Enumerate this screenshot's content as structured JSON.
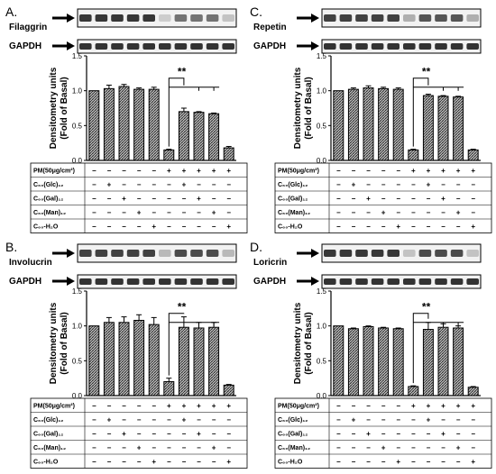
{
  "chart_data": [
    {
      "type": "bar",
      "panel_label": "A.",
      "protein": "Filaggrin",
      "loading_control": "GAPDH",
      "ylabel": "Densitometry units\n(Fold of Basal)",
      "ylim": [
        0,
        1.5
      ],
      "yticks": [
        "0.0",
        "0.5",
        "1.0",
        "1.5"
      ],
      "values": [
        1.0,
        1.03,
        1.06,
        1.02,
        1.02,
        0.15,
        0.7,
        0.69,
        0.67,
        0.18
      ],
      "errors": [
        0.0,
        0.05,
        0.03,
        0.02,
        0.03,
        0.01,
        0.05,
        0.01,
        0.01,
        0.02
      ],
      "significance": "**",
      "band_intensities": [
        0.9,
        0.9,
        0.9,
        0.9,
        0.9,
        0.15,
        0.6,
        0.6,
        0.6,
        0.2
      ],
      "table_rows": [
        {
          "label": "PM(50μg/cm²)",
          "cells": [
            "−",
            "−",
            "−",
            "−",
            "−",
            "+",
            "+",
            "+",
            "+",
            "+"
          ]
        },
        {
          "label": "C₆₀(Glc)₁₂",
          "cells": [
            "−",
            "+",
            "−",
            "−",
            "−",
            "−",
            "+",
            "−",
            "−",
            "−"
          ]
        },
        {
          "label": "C₆₀(Gal)₁₂",
          "cells": [
            "−",
            "−",
            "+",
            "−",
            "−",
            "−",
            "−",
            "+",
            "−",
            "−"
          ]
        },
        {
          "label": "C₆₀(Man)₁₂",
          "cells": [
            "−",
            "−",
            "−",
            "+",
            "−",
            "−",
            "−",
            "−",
            "+",
            "−"
          ]
        },
        {
          "label": "C₆₀-H₂O",
          "cells": [
            "−",
            "−",
            "−",
            "−",
            "+",
            "−",
            "−",
            "−",
            "−",
            "+"
          ]
        }
      ]
    },
    {
      "type": "bar",
      "panel_label": "C.",
      "protein": "Repetin",
      "loading_control": "GAPDH",
      "ylabel": "Densitometry units\n(Fold of Basal)",
      "ylim": [
        0,
        1.5
      ],
      "yticks": [
        "0.0",
        "0.5",
        "1.0",
        "1.5"
      ],
      "values": [
        1.0,
        1.02,
        1.04,
        1.03,
        1.02,
        0.15,
        0.93,
        0.92,
        0.91,
        0.15
      ],
      "errors": [
        0.0,
        0.02,
        0.03,
        0.02,
        0.02,
        0.01,
        0.02,
        0.01,
        0.01,
        0.01
      ],
      "significance": "**",
      "band_intensities": [
        0.85,
        0.85,
        0.85,
        0.85,
        0.85,
        0.3,
        0.75,
        0.75,
        0.75,
        0.3
      ],
      "table_rows": [
        {
          "label": "PM(50μg/cm²)",
          "cells": [
            "−",
            "−",
            "−",
            "−",
            "−",
            "+",
            "+",
            "+",
            "+",
            "+"
          ]
        },
        {
          "label": "C₆₀(Glc)₁₂",
          "cells": [
            "−",
            "+",
            "−",
            "−",
            "−",
            "−",
            "+",
            "−",
            "−",
            "−"
          ]
        },
        {
          "label": "C₆₀(Gal)₁₂",
          "cells": [
            "−",
            "−",
            "+",
            "−",
            "−",
            "−",
            "−",
            "+",
            "−",
            "−"
          ]
        },
        {
          "label": "C₆₀(Man)₁₂",
          "cells": [
            "−",
            "−",
            "−",
            "+",
            "−",
            "−",
            "−",
            "−",
            "+",
            "−"
          ]
        },
        {
          "label": "C₆₀-H₂O",
          "cells": [
            "−",
            "−",
            "−",
            "−",
            "+",
            "−",
            "−",
            "−",
            "−",
            "+"
          ]
        }
      ]
    },
    {
      "type": "bar",
      "panel_label": "B.",
      "protein": "Involucrin",
      "loading_control": "GAPDH",
      "ylabel": "Densitometry units\n(Fold of Basal)",
      "ylim": [
        0,
        1.5
      ],
      "yticks": [
        "0.0",
        "0.5",
        "1.0",
        "1.5"
      ],
      "values": [
        1.0,
        1.05,
        1.05,
        1.08,
        1.02,
        0.2,
        0.98,
        0.97,
        0.98,
        0.15
      ],
      "errors": [
        0.0,
        0.07,
        0.08,
        0.08,
        0.1,
        0.05,
        0.15,
        0.08,
        0.07,
        0.01
      ],
      "significance": "**",
      "band_intensities": [
        0.85,
        0.85,
        0.85,
        0.85,
        0.85,
        0.25,
        0.8,
        0.8,
        0.8,
        0.25
      ],
      "table_rows": [
        {
          "label": "PM(50μg/cm²)",
          "cells": [
            "−",
            "−",
            "−",
            "−",
            "−",
            "+",
            "+",
            "+",
            "+",
            "+"
          ]
        },
        {
          "label": "C₆₀(Glc)₁₂",
          "cells": [
            "−",
            "+",
            "−",
            "−",
            "−",
            "−",
            "+",
            "−",
            "−",
            "−"
          ]
        },
        {
          "label": "C₆₀(Gal)₁₂",
          "cells": [
            "−",
            "−",
            "+",
            "−",
            "−",
            "−",
            "−",
            "+",
            "−",
            "−"
          ]
        },
        {
          "label": "C₆₀(Man)₁₂",
          "cells": [
            "−",
            "−",
            "−",
            "+",
            "−",
            "−",
            "−",
            "−",
            "+",
            "−"
          ]
        },
        {
          "label": "C₆₀-H₂O",
          "cells": [
            "−",
            "−",
            "−",
            "−",
            "+",
            "−",
            "−",
            "−",
            "−",
            "+"
          ]
        }
      ]
    },
    {
      "type": "bar",
      "panel_label": "D.",
      "protein": "Loricrin",
      "loading_control": "GAPDH",
      "ylabel": "Densitometry units\n(Fold of Basal)",
      "ylim": [
        0,
        1.5
      ],
      "yticks": [
        "0.0",
        "0.5",
        "1.0",
        "1.5"
      ],
      "values": [
        1.0,
        0.96,
        0.99,
        0.97,
        0.96,
        0.13,
        0.95,
        0.98,
        0.97,
        0.12
      ],
      "errors": [
        0.0,
        0.01,
        0.01,
        0.01,
        0.01,
        0.01,
        0.1,
        0.05,
        0.03,
        0.01
      ],
      "significance": "**",
      "band_intensities": [
        0.9,
        0.9,
        0.9,
        0.9,
        0.9,
        0.2,
        0.8,
        0.8,
        0.8,
        0.2
      ],
      "table_rows": [
        {
          "label": "PM(50μg/cm²)",
          "cells": [
            "−",
            "−",
            "−",
            "−",
            "−",
            "+",
            "+",
            "+",
            "+",
            "+"
          ]
        },
        {
          "label": "C₆₀(Glc)₁₂",
          "cells": [
            "−",
            "+",
            "−",
            "−",
            "−",
            "−",
            "+",
            "−",
            "−",
            "−"
          ]
        },
        {
          "label": "C₆₀(Gal)₁₂",
          "cells": [
            "−",
            "−",
            "+",
            "−",
            "−",
            "−",
            "−",
            "+",
            "−",
            "−"
          ]
        },
        {
          "label": "C₆₀(Man)₁₂",
          "cells": [
            "−",
            "−",
            "−",
            "+",
            "−",
            "−",
            "−",
            "−",
            "+",
            "−"
          ]
        },
        {
          "label": "C₆₀-H₂O",
          "cells": [
            "−",
            "−",
            "−",
            "−",
            "+",
            "−",
            "−",
            "−",
            "−",
            "+"
          ]
        }
      ]
    }
  ]
}
